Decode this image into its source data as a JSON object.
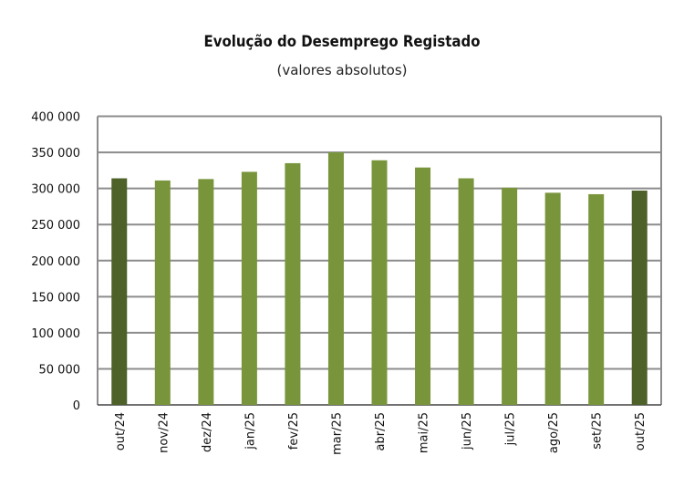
{
  "chart_data": {
    "type": "bar",
    "title": "Evolução do Desemprego Registado",
    "subtitle": "(valores absolutos)",
    "xlabel": "",
    "ylabel": "",
    "ylim": [
      0,
      400000
    ],
    "yticks": [
      0,
      50000,
      100000,
      150000,
      200000,
      250000,
      300000,
      350000,
      400000
    ],
    "ytick_labels": [
      "0",
      "50 000",
      "100 000",
      "150 000",
      "200 000",
      "250 000",
      "300 000",
      "350 000",
      "400 000"
    ],
    "grid": true,
    "categories": [
      "out/24",
      "nov/24",
      "dez/24",
      "jan/25",
      "fev/25",
      "mar/25",
      "abr/25",
      "mai/25",
      "jun/25",
      "jul/25",
      "ago/25",
      "set/25",
      "out/25"
    ],
    "values": [
      314000,
      311000,
      313000,
      323000,
      335000,
      350000,
      339000,
      329000,
      314000,
      301000,
      294000,
      292000,
      297000
    ],
    "highlighted": [
      true,
      false,
      false,
      false,
      false,
      false,
      false,
      false,
      false,
      false,
      false,
      false,
      true
    ],
    "colors": {
      "bar": "#78953b",
      "highlight": "#4d6129",
      "grid": "#8c8c8c"
    }
  }
}
